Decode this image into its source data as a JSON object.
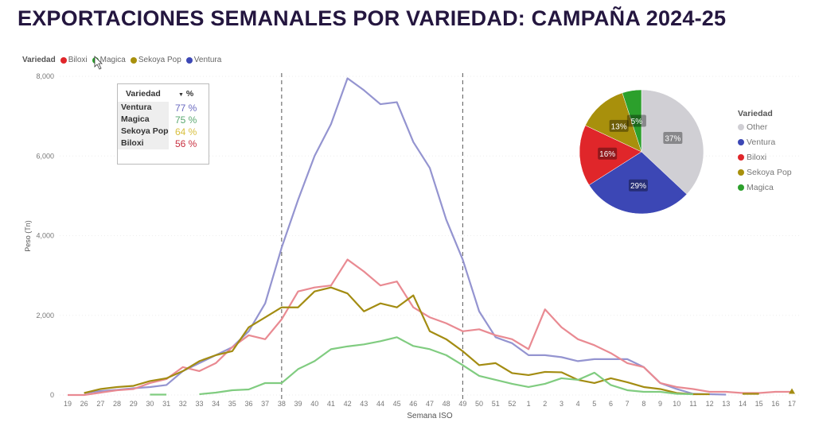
{
  "title": "EXPORTACIONES SEMANALES POR VARIEDAD: CAMPAÑA 2024-25",
  "legend": {
    "title": "Variedad",
    "items": [
      {
        "label": "Biloxi",
        "color": "#e0262a"
      },
      {
        "label": "Magica",
        "color": "#2ca02c"
      },
      {
        "label": "Sekoya Pop",
        "color": "#a8900c"
      },
      {
        "label": "Ventura",
        "color": "#3c47b5"
      }
    ]
  },
  "table": {
    "headers": [
      "Variedad",
      "%"
    ],
    "rows": [
      {
        "name": "Ventura",
        "value": "77 %",
        "color": "#6a6ac0"
      },
      {
        "name": "Magica",
        "value": "75 %",
        "color": "#5aa870"
      },
      {
        "name": "Sekoya Pop",
        "value": "64 %",
        "color": "#d8c040"
      },
      {
        "name": "Biloxi",
        "value": "56 %",
        "color": "#c83040"
      }
    ]
  },
  "chart_data": [
    {
      "type": "line",
      "xlabel": "Semana ISO",
      "ylabel": "Peso (Tn)",
      "ylim": [
        0,
        8000
      ],
      "yticks": [
        0,
        2000,
        4000,
        6000,
        8000
      ],
      "ytick_labels": [
        "0",
        "2,000",
        "4,000",
        "6,000",
        "8,000"
      ],
      "categories": [
        "19",
        "26",
        "27",
        "28",
        "29",
        "30",
        "31",
        "32",
        "33",
        "34",
        "35",
        "36",
        "37",
        "38",
        "39",
        "40",
        "41",
        "42",
        "43",
        "44",
        "45",
        "46",
        "47",
        "48",
        "49",
        "50",
        "51",
        "52",
        "1",
        "2",
        "3",
        "4",
        "5",
        "6",
        "7",
        "8",
        "9",
        "10",
        "11",
        "12",
        "13",
        "14",
        "15",
        "16",
        "17"
      ],
      "reference_lines": [
        "38",
        "49"
      ],
      "series": [
        {
          "name": "Ventura",
          "color": "#9494d0",
          "values": [
            null,
            50,
            100,
            130,
            170,
            200,
            250,
            600,
            800,
            1000,
            1200,
            1600,
            2300,
            3700,
            4900,
            6000,
            6800,
            7950,
            7650,
            7300,
            7350,
            6350,
            5700,
            4400,
            3400,
            2100,
            1450,
            1300,
            1000,
            1000,
            950,
            850,
            900,
            900,
            900,
            700,
            300,
            150,
            30,
            20,
            10,
            null,
            null,
            null,
            null
          ]
        },
        {
          "name": "Biloxi",
          "color": "#e98a92",
          "values": [
            0,
            0,
            60,
            120,
            150,
            300,
            400,
            700,
            600,
            800,
            1200,
            1500,
            1400,
            1900,
            2600,
            2700,
            2750,
            3400,
            3100,
            2750,
            2850,
            2200,
            1950,
            1800,
            1600,
            1650,
            1500,
            1400,
            1150,
            2150,
            1700,
            1400,
            1250,
            1050,
            800,
            700,
            300,
            200,
            150,
            80,
            80,
            50,
            50,
            80,
            80
          ]
        },
        {
          "name": "Sekoya Pop",
          "color": "#a38c12",
          "values": [
            null,
            50,
            150,
            200,
            230,
            350,
            420,
            600,
            850,
            1000,
            1100,
            1700,
            1950,
            2200,
            2200,
            2600,
            2700,
            2550,
            2100,
            2300,
            2200,
            2500,
            1600,
            1400,
            1100,
            750,
            800,
            550,
            500,
            580,
            570,
            380,
            300,
            420,
            320,
            200,
            150,
            50,
            20,
            20,
            null,
            30,
            30,
            null,
            50
          ]
        },
        {
          "name": "Magica",
          "color": "#80cc80",
          "values": [
            null,
            null,
            null,
            null,
            null,
            10,
            10,
            null,
            20,
            60,
            120,
            140,
            300,
            300,
            650,
            850,
            1150,
            1220,
            1270,
            1350,
            1450,
            1230,
            1150,
            1000,
            750,
            480,
            380,
            280,
            200,
            280,
            420,
            380,
            560,
            250,
            120,
            80,
            80,
            30,
            20,
            null,
            null,
            null,
            null,
            null,
            null
          ]
        }
      ]
    },
    {
      "type": "pie",
      "legend_title": "Variedad",
      "slices": [
        {
          "label": "Other",
          "value": 37,
          "text": "37%",
          "color": "#d0cfd4"
        },
        {
          "label": "Ventura",
          "value": 29,
          "text": "29%",
          "color": "#3c47b5"
        },
        {
          "label": "Biloxi",
          "value": 16,
          "text": "16%",
          "color": "#e0262a"
        },
        {
          "label": "Sekoya Pop",
          "value": 13,
          "text": "13%",
          "color": "#a8900c"
        },
        {
          "label": "Magica",
          "value": 5,
          "text": "5%",
          "color": "#2ca02c"
        }
      ]
    }
  ]
}
